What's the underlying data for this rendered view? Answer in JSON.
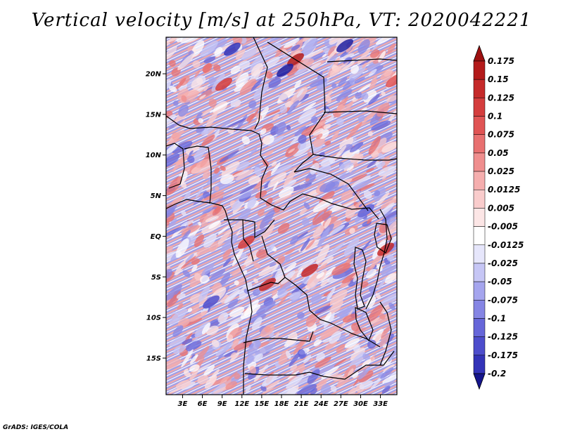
{
  "title": "Vertical velocity [m/s] at 250hPa, VT: 2020042221",
  "credit": "GrADS: IGES/COLA",
  "map": {
    "lat_range": [
      -19.5,
      24.5
    ],
    "lon_range": [
      0.5,
      35.5
    ],
    "lat_ticks": [
      {
        "value": 20,
        "label": "20N"
      },
      {
        "value": 15,
        "label": "15N"
      },
      {
        "value": 10,
        "label": "10N"
      },
      {
        "value": 5,
        "label": "5N"
      },
      {
        "value": 0,
        "label": "EQ"
      },
      {
        "value": -5,
        "label": "5S"
      },
      {
        "value": -10,
        "label": "10S"
      },
      {
        "value": -15,
        "label": "15S"
      }
    ],
    "lon_ticks": [
      {
        "value": 3,
        "label": "3E"
      },
      {
        "value": 6,
        "label": "6E"
      },
      {
        "value": 9,
        "label": "9E"
      },
      {
        "value": 12,
        "label": "12E"
      },
      {
        "value": 15,
        "label": "15E"
      },
      {
        "value": 18,
        "label": "18E"
      },
      {
        "value": 21,
        "label": "21E"
      },
      {
        "value": 24,
        "label": "24E"
      },
      {
        "value": 27,
        "label": "27E"
      },
      {
        "value": 30,
        "label": "30E"
      },
      {
        "value": 33,
        "label": "33E"
      }
    ]
  },
  "colorbar": {
    "levels": [
      {
        "label": "0.175",
        "color": "#b31a1a"
      },
      {
        "label": "0.15",
        "color": "#c52a2a"
      },
      {
        "label": "0.125",
        "color": "#d43d3d"
      },
      {
        "label": "0.1",
        "color": "#e05454"
      },
      {
        "label": "0.075",
        "color": "#e87070"
      },
      {
        "label": "0.05",
        "color": "#ef8e8e"
      },
      {
        "label": "0.025",
        "color": "#f5aeae"
      },
      {
        "label": "0.0125",
        "color": "#f9cccc"
      },
      {
        "label": "0.005",
        "color": "#fce6e6"
      },
      {
        "label": "-0.005",
        "color": "#ffffff"
      },
      {
        "label": "-0.0125",
        "color": "#e6e6fb"
      },
      {
        "label": "-0.025",
        "color": "#c6c6f5"
      },
      {
        "label": "-0.05",
        "color": "#a5a5ee"
      },
      {
        "label": "-0.075",
        "color": "#8585e4"
      },
      {
        "label": "-0.1",
        "color": "#6666d9"
      },
      {
        "label": "-0.125",
        "color": "#4d4dcc"
      },
      {
        "label": "-0.175",
        "color": "#3333b8"
      },
      {
        "label": "-0.2",
        "color": "#2020a0"
      }
    ],
    "top_arrow_color": "#9e1010",
    "bottom_arrow_color": "#15158c"
  }
}
